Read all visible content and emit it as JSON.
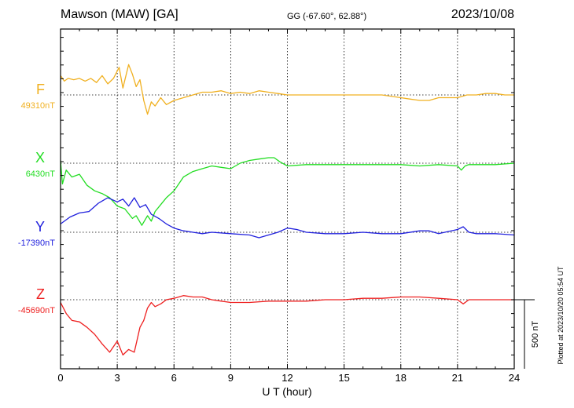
{
  "header": {
    "station": "Mawson (MAW)  [GA]",
    "coords": "GG (-67.60°,  62.88°)",
    "date": "2023/10/08"
  },
  "side_note": "Plotted at 2023/10/20 05:54 UT",
  "scale_label": "500 nT",
  "chart_data": {
    "type": "line",
    "xlabel": "U T (hour)",
    "xlim": [
      0,
      24
    ],
    "xticks": [
      0,
      3,
      6,
      9,
      12,
      15,
      18,
      21,
      24
    ],
    "xtick_labels": [
      "0",
      "3",
      "6",
      "9",
      "12",
      "15",
      "18",
      "21",
      "24"
    ],
    "grid": true,
    "scale_bar_nT": 500,
    "series": [
      {
        "name": "F",
        "baseline_label": "49310nT",
        "baseline_nT": 49310,
        "color": "#f0b020",
        "x": [
          0,
          0.2,
          0.4,
          0.7,
          1.0,
          1.3,
          1.6,
          1.9,
          2.2,
          2.5,
          2.8,
          3.1,
          3.3,
          3.6,
          3.8,
          4.0,
          4.2,
          4.4,
          4.6,
          4.8,
          5.0,
          5.3,
          5.6,
          6.0,
          6.5,
          7.0,
          7.5,
          8.0,
          8.5,
          9.0,
          9.5,
          10.0,
          10.5,
          11.0,
          11.5,
          12.0,
          13.0,
          14.0,
          15.0,
          16.0,
          17.0,
          18.0,
          18.5,
          19.0,
          19.5,
          20.0,
          21.0,
          21.5,
          22.0,
          22.5,
          23.0,
          23.5,
          24.0
        ],
        "values": [
          140,
          100,
          120,
          110,
          120,
          100,
          120,
          90,
          140,
          80,
          120,
          200,
          50,
          220,
          150,
          60,
          110,
          -40,
          -140,
          -50,
          -80,
          -20,
          -70,
          -40,
          -20,
          0,
          20,
          20,
          30,
          10,
          20,
          10,
          30,
          20,
          10,
          0,
          0,
          0,
          0,
          0,
          0,
          -20,
          -30,
          -40,
          -40,
          -20,
          -20,
          0,
          0,
          10,
          10,
          0,
          0
        ]
      },
      {
        "name": "X",
        "baseline_label": "6430nT",
        "baseline_nT": 6430,
        "color": "#22dd22",
        "x": [
          0,
          0.1,
          0.3,
          0.6,
          1.0,
          1.4,
          1.8,
          2.2,
          2.6,
          3.0,
          3.4,
          3.8,
          4.0,
          4.3,
          4.6,
          4.8,
          5.0,
          5.3,
          5.6,
          6.0,
          6.5,
          7.0,
          7.5,
          8.0,
          8.5,
          9.0,
          9.5,
          10.0,
          10.5,
          11.0,
          11.3,
          11.6,
          12.0,
          13.0,
          14.0,
          15.0,
          16.0,
          17.0,
          18.0,
          19.0,
          20.0,
          21.0,
          21.2,
          21.4,
          21.6,
          22.0,
          23.0,
          24.0
        ],
        "values": [
          20,
          -150,
          -50,
          -100,
          -80,
          -160,
          -200,
          -220,
          -250,
          -310,
          -330,
          -400,
          -380,
          -450,
          -380,
          -420,
          -350,
          -300,
          -250,
          -200,
          -100,
          -60,
          -40,
          -20,
          -30,
          -40,
          0,
          20,
          30,
          40,
          40,
          10,
          -20,
          -10,
          -10,
          -10,
          -10,
          -10,
          -10,
          -20,
          -10,
          -20,
          -50,
          -20,
          -10,
          -10,
          -10,
          0
        ]
      },
      {
        "name": "Y",
        "baseline_label": "-17390nT",
        "baseline_nT": -17390,
        "color": "#2020dd",
        "x": [
          0,
          0.5,
          1.0,
          1.5,
          2.0,
          2.5,
          3.0,
          3.3,
          3.6,
          3.9,
          4.2,
          4.5,
          4.8,
          5.2,
          5.6,
          6.0,
          6.5,
          7.0,
          7.5,
          8.0,
          9.0,
          10.0,
          10.5,
          11.0,
          11.5,
          12.0,
          12.5,
          13.0,
          14.0,
          15.0,
          16.0,
          17.0,
          18.0,
          19.0,
          19.5,
          20.0,
          21.0,
          21.3,
          21.6,
          22.0,
          23.0,
          24.0
        ],
        "values": [
          60,
          110,
          140,
          150,
          210,
          250,
          220,
          240,
          190,
          250,
          180,
          200,
          130,
          100,
          60,
          30,
          10,
          0,
          -10,
          0,
          -10,
          -20,
          -40,
          -20,
          0,
          30,
          20,
          0,
          -10,
          -10,
          0,
          -10,
          -10,
          10,
          10,
          -10,
          20,
          40,
          0,
          -10,
          -10,
          -20
        ]
      },
      {
        "name": "Z",
        "baseline_label": "-45690nT",
        "baseline_nT": -45690,
        "color": "#ee2020",
        "x": [
          0,
          0.3,
          0.6,
          1.0,
          1.4,
          1.8,
          2.2,
          2.6,
          3.0,
          3.3,
          3.6,
          3.9,
          4.2,
          4.4,
          4.6,
          4.8,
          5.0,
          5.3,
          5.6,
          6.0,
          6.5,
          7.0,
          7.5,
          8.0,
          8.5,
          9.0,
          10.0,
          11.0,
          12.0,
          13.0,
          14.0,
          15.0,
          16.0,
          17.0,
          18.0,
          19.0,
          20.0,
          21.0,
          21.3,
          21.6,
          22.0,
          23.0,
          24.0
        ],
        "values": [
          -20,
          -100,
          -150,
          -160,
          -200,
          -250,
          -320,
          -380,
          -300,
          -400,
          -360,
          -380,
          -200,
          -150,
          -60,
          -20,
          -50,
          -30,
          0,
          10,
          30,
          20,
          20,
          0,
          -10,
          -20,
          -20,
          -10,
          -10,
          -10,
          0,
          0,
          10,
          10,
          20,
          20,
          10,
          0,
          -30,
          0,
          0,
          0,
          0
        ]
      }
    ]
  }
}
